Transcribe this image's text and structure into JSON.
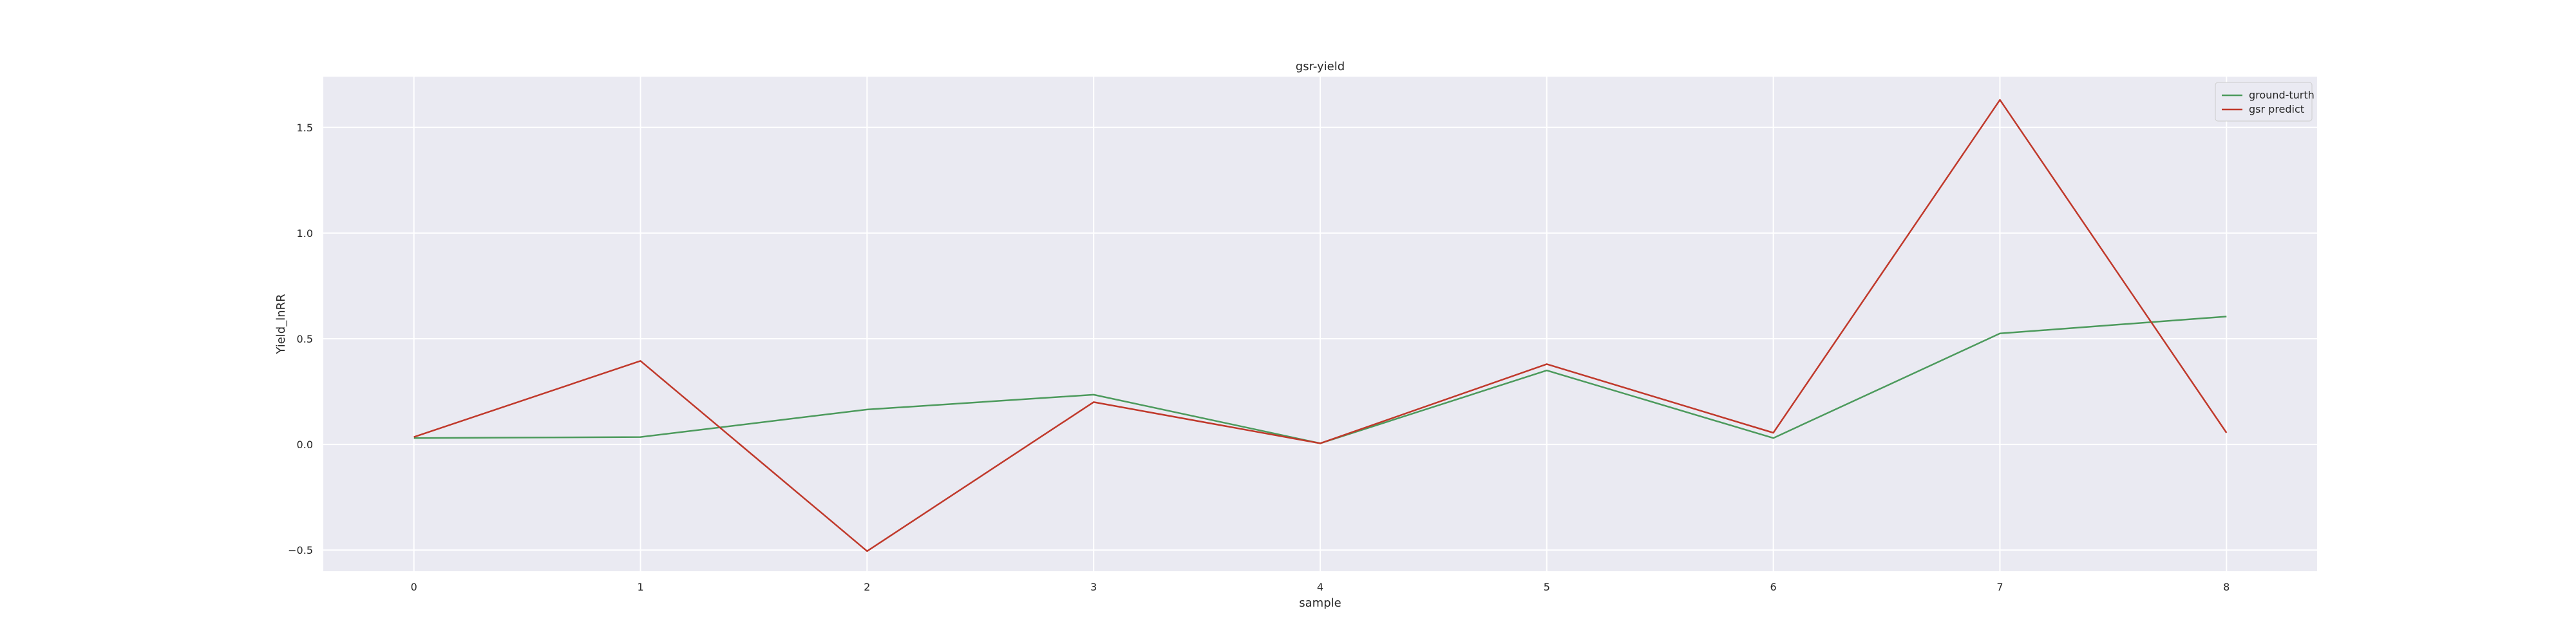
{
  "chart_data": {
    "type": "line",
    "title": "gsr-yield",
    "xlabel": "sample",
    "ylabel": "Yield_lnRR",
    "x": [
      0,
      1,
      2,
      3,
      4,
      5,
      6,
      7,
      8
    ],
    "xlim": [
      -0.4,
      8.4
    ],
    "ylim": [
      -0.6,
      1.74
    ],
    "xticks": [
      0,
      1,
      2,
      3,
      4,
      5,
      6,
      7,
      8
    ],
    "yticks": [
      -0.5,
      0.0,
      0.5,
      1.0,
      1.5
    ],
    "ytick_labels": [
      "−0.5",
      "0.0",
      "0.5",
      "1.0",
      "1.5"
    ],
    "grid": true,
    "legend_position": "top-right",
    "background_color": "#eaeaf2",
    "grid_color": "#ffffff",
    "series": [
      {
        "name": "ground-turth",
        "color": "#4c9a5c",
        "values": [
          0.03,
          0.035,
          0.165,
          0.235,
          0.005,
          0.35,
          0.03,
          0.525,
          0.605
        ]
      },
      {
        "name": "gsr predict",
        "color": "#c0392b",
        "values": [
          0.035,
          0.395,
          -0.505,
          0.2,
          0.005,
          0.38,
          0.055,
          1.63,
          0.055
        ]
      }
    ]
  }
}
